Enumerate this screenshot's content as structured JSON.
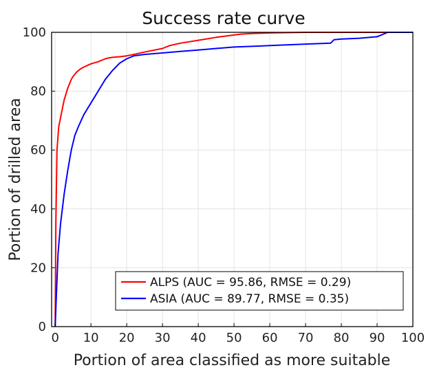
{
  "chart_data": {
    "type": "line",
    "title": "Success rate curve",
    "xlabel": "Portion of area classified as more suitable",
    "ylabel": "Portion of drilled area",
    "xlim": [
      -1,
      100
    ],
    "ylim": [
      0,
      100
    ],
    "xticks": [
      0,
      10,
      20,
      30,
      40,
      50,
      60,
      70,
      80,
      90,
      100
    ],
    "yticks": [
      0,
      20,
      40,
      60,
      80,
      100
    ],
    "grid": true,
    "legend_position": "bottom-right",
    "series": [
      {
        "name": "ALPS (AUC = 95.86, RMSE = 0.29)",
        "color": "#ff0000",
        "x": [
          0,
          0.2,
          0.5,
          1,
          1.5,
          2,
          2.5,
          3,
          3.5,
          4,
          4.5,
          5,
          6,
          7,
          8,
          10,
          12,
          14,
          15,
          16,
          18,
          20,
          22,
          25,
          30,
          32,
          35,
          40,
          45,
          50,
          52,
          55,
          60,
          70,
          80,
          90,
          100
        ],
        "y": [
          0,
          35,
          60,
          68,
          71,
          74,
          77,
          79,
          81,
          82.5,
          84,
          85,
          86.5,
          87.5,
          88.2,
          89.3,
          90,
          91,
          91.3,
          91.5,
          91.7,
          92,
          92.5,
          93.3,
          94.5,
          95.5,
          96.3,
          97.3,
          98.3,
          99.1,
          99.4,
          99.6,
          99.8,
          100,
          100,
          100,
          100
        ]
      },
      {
        "name": "ASIA (AUC = 89.77, RMSE = 0.35)",
        "color": "#0000ff",
        "x": [
          0,
          0.3,
          0.8,
          1.5,
          2.5,
          3.5,
          4.5,
          5.5,
          6.5,
          8,
          10,
          12,
          14,
          16,
          18,
          20,
          22,
          25,
          30,
          35,
          40,
          45,
          50,
          60,
          70,
          77,
          78,
          80,
          85,
          90,
          93,
          95,
          100
        ],
        "y": [
          0,
          10,
          25,
          35,
          45,
          53,
          60,
          65,
          68,
          72,
          76,
          80,
          84,
          87,
          89.5,
          91,
          92,
          92.5,
          93,
          93.5,
          94,
          94.5,
          95,
          95.5,
          96,
          96.3,
          97.5,
          97.7,
          98,
          98.5,
          100,
          100,
          100
        ]
      }
    ]
  }
}
